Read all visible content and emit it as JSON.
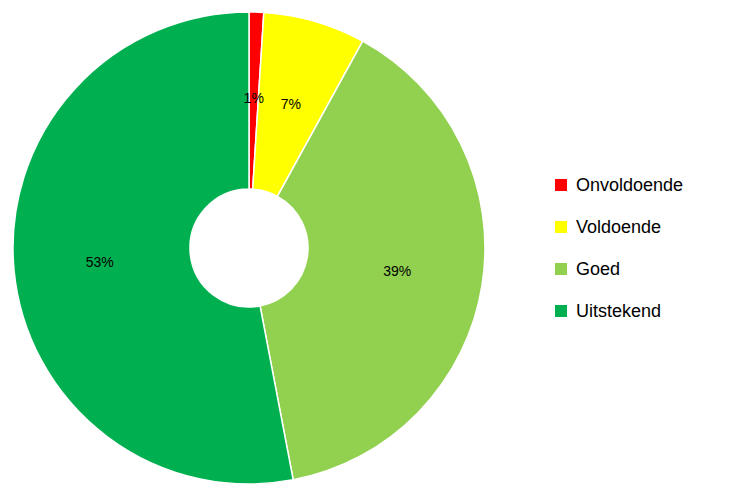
{
  "chart_data": {
    "type": "pie",
    "categories": [
      "Onvoldoende",
      "Voldoende",
      "Goed",
      "Uitstekend"
    ],
    "values": [
      1,
      7,
      39,
      53
    ],
    "value_labels": [
      "1%",
      "7%",
      "39%",
      "53%"
    ],
    "colors": [
      "#ff0000",
      "#ffff00",
      "#92d050",
      "#00b050"
    ],
    "data_labels": true,
    "legend": "right"
  }
}
